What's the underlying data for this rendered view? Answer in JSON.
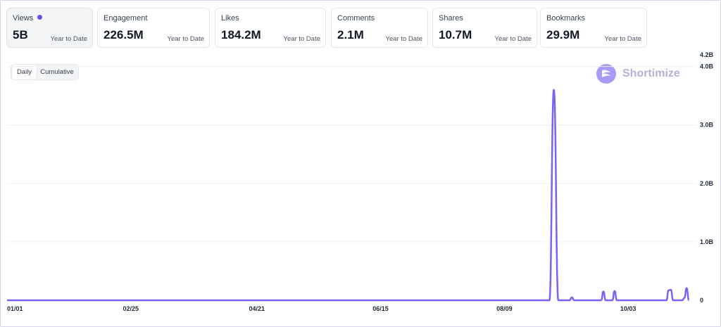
{
  "metrics": [
    {
      "title": "Views",
      "value": "5B",
      "period": "Year to Date"
    },
    {
      "title": "Engagement",
      "value": "226.5M",
      "period": "Year to Date"
    },
    {
      "title": "Likes",
      "value": "184.2M",
      "period": "Year to Date"
    },
    {
      "title": "Comments",
      "value": "2.1M",
      "period": "Year to Date"
    },
    {
      "title": "Shares",
      "value": "10.7M",
      "period": "Year to Date"
    },
    {
      "title": "Bookmarks",
      "value": "29.9M",
      "period": "Year to Date"
    }
  ],
  "toggle": {
    "daily": "Daily",
    "cumulative": "Cumulative"
  },
  "brand": {
    "name": "Shortimize"
  },
  "colors": {
    "accent": "#6d4ef2",
    "line": "#7b61f5"
  },
  "chart_data": {
    "type": "line",
    "title": "",
    "xlabel": "",
    "ylabel": "",
    "x_ticks": [
      "01/01",
      "02/25",
      "04/21",
      "06/15",
      "08/09",
      "10/03"
    ],
    "y_ticks": [
      "0",
      "1.0B",
      "2.0B",
      "3.0B",
      "4.0B",
      "4.2B"
    ],
    "y_tick_values": [
      0,
      1000000000,
      2000000000,
      3000000000,
      4000000000,
      4200000000
    ],
    "ylim": [
      0,
      4200000000
    ],
    "grid": true,
    "series": [
      {
        "values": [
          {
            "date": "2024-01-01",
            "value": 0
          },
          {
            "date": "2024-08-29",
            "value": 0
          },
          {
            "date": "2024-08-31",
            "value": 3600000000
          },
          {
            "date": "2024-09-02",
            "value": 0
          },
          {
            "date": "2024-09-07",
            "value": 0
          },
          {
            "date": "2024-09-08",
            "value": 50000000
          },
          {
            "date": "2024-09-09",
            "value": 0
          },
          {
            "date": "2024-09-21",
            "value": 0
          },
          {
            "date": "2024-09-22",
            "value": 150000000
          },
          {
            "date": "2024-09-23",
            "value": 0
          },
          {
            "date": "2024-09-26",
            "value": 0
          },
          {
            "date": "2024-09-27",
            "value": 160000000
          },
          {
            "date": "2024-09-28",
            "value": 0
          },
          {
            "date": "2024-10-20",
            "value": 0
          },
          {
            "date": "2024-10-21",
            "value": 170000000
          },
          {
            "date": "2024-10-22",
            "value": 180000000
          },
          {
            "date": "2024-10-23",
            "value": 0
          },
          {
            "date": "2024-10-27",
            "value": 0
          },
          {
            "date": "2024-10-28",
            "value": 40000000
          },
          {
            "date": "2024-10-29",
            "value": 210000000
          },
          {
            "date": "2024-10-30",
            "value": 0
          }
        ]
      }
    ]
  }
}
